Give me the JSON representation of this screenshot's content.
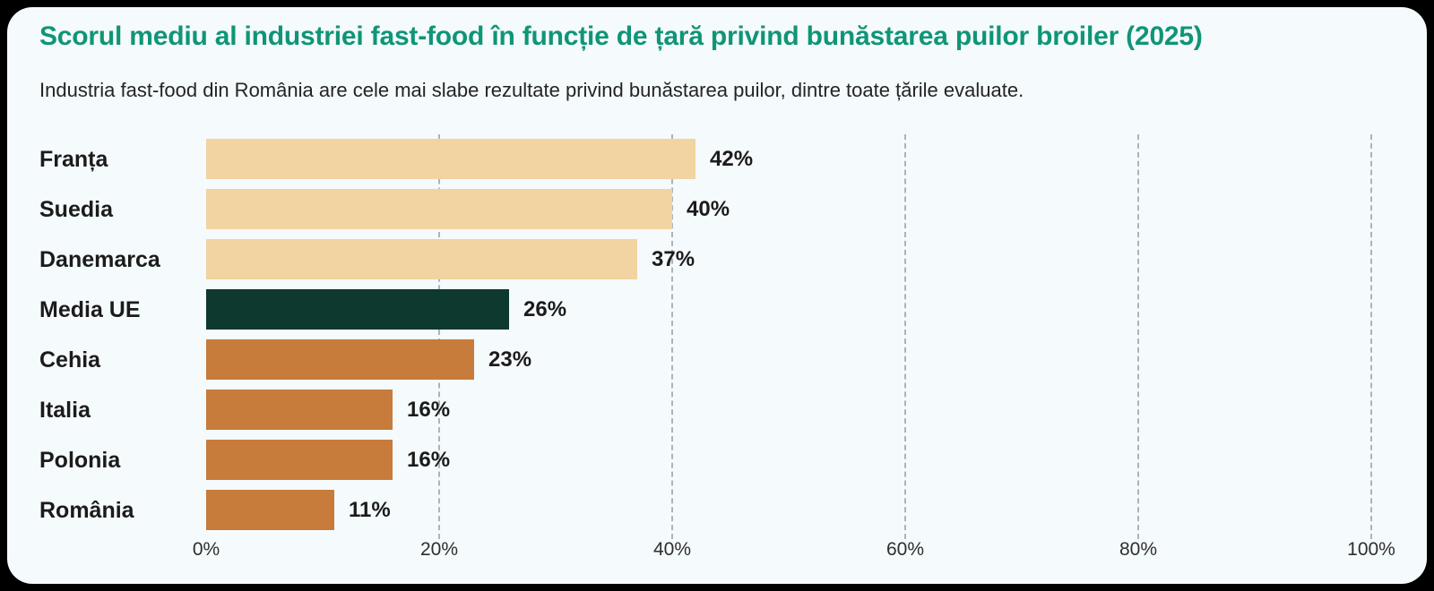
{
  "header": {
    "title": "Scorul mediu al industriei fast-food în funcție de țară privind bunăstarea puilor broiler (2025)",
    "subtitle": "Industria fast-food din România are cele mai slabe rezultate privind bunăstarea puilor, dintre toate țările evaluate."
  },
  "chart_data": {
    "type": "bar",
    "orientation": "horizontal",
    "title": "Scorul mediu al industriei fast-food în funcție de țară privind bunăstarea puilor broiler (2025)",
    "subtitle": "Industria fast-food din România are cele mai slabe rezultate privind bunăstarea puilor, dintre toate țările evaluate.",
    "categories": [
      "Franța",
      "Suedia",
      "Danemarca",
      "Media UE",
      "Cehia",
      "Italia",
      "Polonia",
      "România"
    ],
    "values": [
      42,
      40,
      37,
      26,
      23,
      16,
      16,
      11
    ],
    "value_labels": [
      "42%",
      "40%",
      "37%",
      "26%",
      "23%",
      "16%",
      "16%",
      "11%"
    ],
    "bar_colors": [
      "#f2d3a2",
      "#f2d3a2",
      "#f2d3a2",
      "#0d392e",
      "#c77c3c",
      "#c77c3c",
      "#c77c3c",
      "#c77c3c"
    ],
    "x_ticks": [
      {
        "label": "0%",
        "value": 0
      },
      {
        "label": "20%",
        "value": 20
      },
      {
        "label": "40%",
        "value": 40
      },
      {
        "label": "60%",
        "value": 60
      },
      {
        "label": "80%",
        "value": 80
      },
      {
        "label": "100%",
        "value": 100
      }
    ],
    "xlim": [
      0,
      100
    ],
    "grid": "vertical-dashed",
    "legend": "none",
    "colors": {
      "title_accent": "#0f9577",
      "bar_cream": "#f2d3a2",
      "bar_green": "#0d392e",
      "bar_orange": "#c77c3c",
      "card_background": "#f5fafc",
      "outer_background": "#000000",
      "gridline": "#aab4bc",
      "text": "#1b1b1b"
    }
  }
}
